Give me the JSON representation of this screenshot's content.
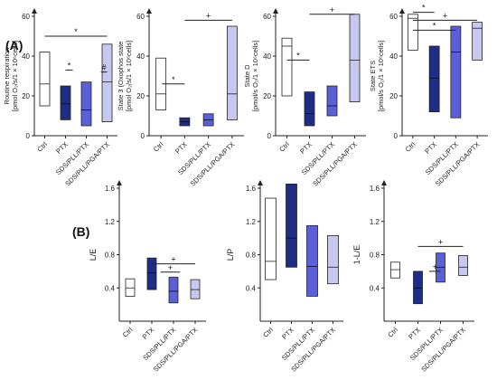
{
  "panels": {
    "a": "(A)",
    "b": "(B)"
  },
  "colors": {
    "Ctrl": "#ffffff",
    "PTX": "#1e2d86",
    "SDS/PLL/PTX": "#5c60d6",
    "SDS/PLL/PGA/PTX": "#c6c8f0",
    "stroke": "#222222"
  },
  "chart_data": [
    {
      "type": "box",
      "ylabel_lines": [
        "Routine respiration",
        "[pmol O₂/s/1 × 10⁶cells]"
      ],
      "ylim": [
        0,
        60
      ],
      "yticks": [
        "0",
        "20",
        "40",
        "60"
      ],
      "yticks_v": [
        0,
        20,
        40,
        60
      ],
      "categories": [
        "Ctrl",
        "PTX",
        "SDS/PLL/PTX",
        "SDS/PLL/PGA/PTX"
      ],
      "boxes": [
        {
          "q1": 15,
          "median": 26,
          "q3": 42
        },
        {
          "q1": 8,
          "median": 16,
          "q3": 25
        },
        {
          "q1": 5,
          "median": 13,
          "q3": 27
        },
        {
          "q1": 7,
          "median": 27,
          "q3": 46
        }
      ],
      "annotations": [
        {
          "from": 0,
          "to": 3,
          "y": 50,
          "label": "*"
        },
        {
          "from": 1,
          "to": 1.35,
          "y": 33,
          "label": "*"
        },
        {
          "from": 2.7,
          "to": 3,
          "y": 32,
          "label": "#"
        }
      ]
    },
    {
      "type": "box",
      "ylabel_lines": [
        "State 3 (Oxophos state",
        "[pmol O₂/s/1 × 10⁶cells]"
      ],
      "ylim": [
        0,
        60
      ],
      "yticks": [
        "0",
        "20",
        "40",
        "60"
      ],
      "yticks_v": [
        0,
        20,
        40,
        60
      ],
      "categories": [
        "Ctrl",
        "PTX",
        "SDS/PLL/PTX",
        "SDS/PLL/PGA/PTX"
      ],
      "boxes": [
        {
          "q1": 13,
          "median": 21,
          "q3": 39
        },
        {
          "q1": 5,
          "median": 7,
          "q3": 9
        },
        {
          "q1": 5,
          "median": 8,
          "q3": 11
        },
        {
          "q1": 8,
          "median": 21,
          "q3": 55
        }
      ],
      "annotations": [
        {
          "from": 1,
          "to": 3,
          "y": 58,
          "label": "+"
        },
        {
          "from": 0.05,
          "to": 1,
          "y": 26,
          "label": "*"
        }
      ]
    },
    {
      "type": "box",
      "ylabel_lines": [
        "State D",
        "[pmol/s O₂/1 × 10⁶cells]"
      ],
      "ylim": [
        0,
        60
      ],
      "yticks": [
        "0",
        "20",
        "40",
        "60"
      ],
      "yticks_v": [
        0,
        20,
        40,
        60
      ],
      "categories": [
        "Ctrl",
        "PTX",
        "SDS/PLL/PTX",
        "SDS/PLL/PGA/PTX"
      ],
      "boxes": [
        {
          "q1": 20,
          "median": 45,
          "q3": 49
        },
        {
          "q1": 5,
          "median": 11,
          "q3": 22
        },
        {
          "q1": 10,
          "median": 15,
          "q3": 25
        },
        {
          "q1": 17,
          "median": 38,
          "q3": 61
        }
      ],
      "annotations": [
        {
          "from": 0,
          "to": 1,
          "y": 38,
          "label": "*"
        },
        {
          "from": 1,
          "to": 3,
          "y": 61,
          "label": "+"
        }
      ]
    },
    {
      "type": "box",
      "ylabel_lines": [
        "State ETS",
        "[pmol/s O₂/1 × 10⁶cells]"
      ],
      "ylim": [
        0,
        60
      ],
      "yticks": [
        "0",
        "20",
        "40",
        "60"
      ],
      "yticks_v": [
        0,
        20,
        40,
        60
      ],
      "categories": [
        "Ctrl",
        "PTX",
        "SDS/PLL/PTX",
        "SDS/PLL/PGA/PTX"
      ],
      "boxes": [
        {
          "q1": 43,
          "median": 59,
          "q3": 61
        },
        {
          "q1": 12,
          "median": 29,
          "q3": 45
        },
        {
          "q1": 9,
          "median": 42,
          "q3": 55
        },
        {
          "q1": 38,
          "median": 54,
          "q3": 57
        }
      ],
      "annotations": [
        {
          "from": 0,
          "to": 1,
          "y": 62,
          "label": "*"
        },
        {
          "from": 0,
          "to": 3,
          "y": 58,
          "label": "+"
        },
        {
          "from": 0,
          "to": 2,
          "y": 53,
          "label": "*"
        }
      ]
    },
    {
      "type": "box",
      "ylabel_lines": [
        "L/E"
      ],
      "ylim": [
        0,
        1.6
      ],
      "yticks": [
        "0.4",
        "0.8",
        "1.2",
        "1.6"
      ],
      "yticks_v": [
        0.4,
        0.8,
        1.2,
        1.6
      ],
      "categories": [
        "Ctrl",
        "PTX",
        "SDS/PLL/PTX",
        "SDS/PLL/PGA/PTX"
      ],
      "boxes": [
        {
          "q1": 0.3,
          "median": 0.4,
          "q3": 0.51
        },
        {
          "q1": 0.38,
          "median": 0.58,
          "q3": 0.76
        },
        {
          "q1": 0.22,
          "median": 0.36,
          "q3": 0.53
        },
        {
          "q1": 0.27,
          "median": 0.38,
          "q3": 0.5
        }
      ],
      "annotations": [
        {
          "from": 1,
          "to": 3,
          "y": 0.69,
          "label": "+"
        },
        {
          "from": 1.4,
          "to": 2.3,
          "y": 0.59,
          "label": "+"
        }
      ]
    },
    {
      "type": "box",
      "ylabel_lines": [
        "L/P"
      ],
      "ylim": [
        0,
        1.6
      ],
      "yticks": [
        "0.4",
        "0.8",
        "1.2",
        "1.6"
      ],
      "yticks_v": [
        0.4,
        0.8,
        1.2,
        1.6
      ],
      "categories": [
        "Ctrl",
        "PTX",
        "SDS/PLL/PTX",
        "SDS/PLL/PGA/PTX"
      ],
      "boxes": [
        {
          "q1": 0.5,
          "median": 0.72,
          "q3": 1.48
        },
        {
          "q1": 0.65,
          "median": 1.0,
          "q3": 1.65
        },
        {
          "q1": 0.3,
          "median": 0.66,
          "q3": 1.15
        },
        {
          "q1": 0.45,
          "median": 0.65,
          "q3": 1.03
        }
      ],
      "annotations": []
    },
    {
      "type": "box",
      "ylabel_lines": [
        "1-L/E"
      ],
      "ylim": [
        0,
        1.6
      ],
      "yticks": [
        "0.4",
        "0.8",
        "1.2",
        "1.6"
      ],
      "yticks_v": [
        0.4,
        0.8,
        1.2,
        1.6
      ],
      "categories": [
        "Ctrl",
        "PTX",
        "SDS/PLL/PTX",
        "SDS/PLL/PGA/PTX"
      ],
      "boxes": [
        {
          "q1": 0.52,
          "median": 0.62,
          "q3": 0.71
        },
        {
          "q1": 0.21,
          "median": 0.4,
          "q3": 0.6
        },
        {
          "q1": 0.47,
          "median": 0.65,
          "q3": 0.82
        },
        {
          "q1": 0.55,
          "median": 0.65,
          "q3": 0.79
        }
      ],
      "annotations": [
        {
          "from": 1,
          "to": 3,
          "y": 0.9,
          "label": "+"
        },
        {
          "from": 1.5,
          "to": 2,
          "y": 0.6,
          "label": "+"
        }
      ]
    }
  ]
}
